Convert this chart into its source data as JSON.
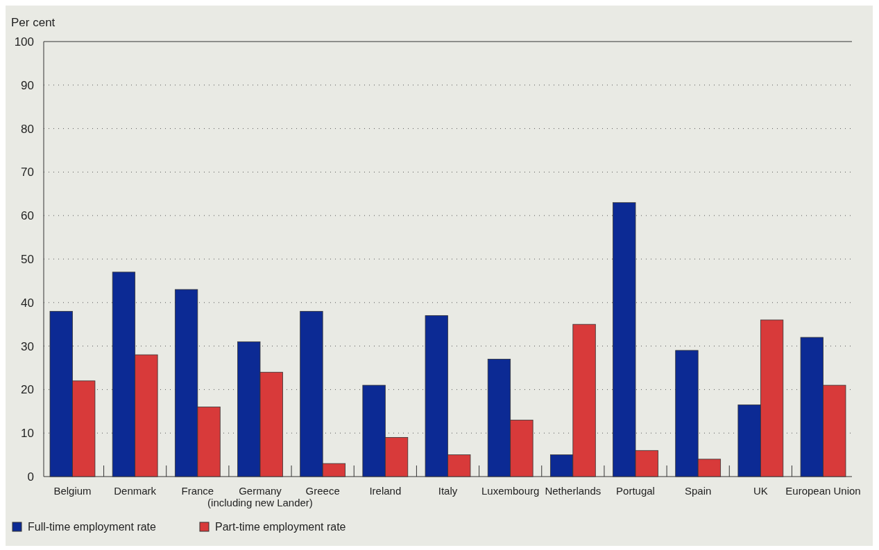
{
  "chart_data": {
    "type": "bar",
    "ylabel": "Per cent",
    "categories": [
      "Belgium",
      "Denmark",
      "France",
      "Germany\n(including new Lander)",
      "Greece",
      "Ireland",
      "Italy",
      "Luxembourg",
      "Netherlands",
      "Portugal",
      "Spain",
      "UK",
      "European Union"
    ],
    "series": [
      {
        "name": "Full-time employment rate",
        "color": "#0c2a94",
        "values": [
          38,
          47,
          43,
          31,
          38,
          21,
          37,
          27,
          5,
          63,
          29,
          16.5,
          32
        ]
      },
      {
        "name": "Part-time employment rate",
        "color": "#d83a3a",
        "values": [
          22,
          28,
          16,
          24,
          3,
          9,
          5,
          13,
          35,
          6,
          4,
          36,
          21
        ]
      }
    ],
    "ylim": [
      0,
      100
    ],
    "yticks": [
      0,
      10,
      20,
      30,
      40,
      50,
      60,
      70,
      80,
      90,
      100
    ],
    "grid": "y",
    "legend": "bottom left"
  }
}
